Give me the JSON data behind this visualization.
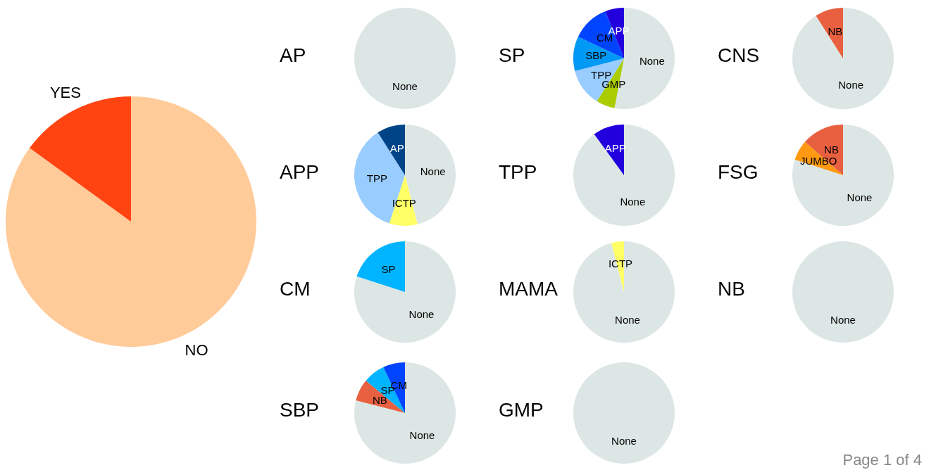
{
  "chart_data": [
    {
      "type": "pie",
      "categories": [
        "NO",
        "YES"
      ],
      "values": [
        85,
        15
      ],
      "colors": [
        "#ffcb99",
        "#ff4411"
      ],
      "annotations": [
        "Page 1 of 4"
      ]
    },
    {
      "type": "pie",
      "title": "AP",
      "categories": [
        "None"
      ],
      "values": [
        100
      ],
      "colors": [
        "#dce6e4"
      ]
    },
    {
      "type": "pie",
      "title": "SP",
      "categories": [
        "None",
        "GMP",
        "TPP",
        "SBP",
        "CM",
        "APP"
      ],
      "values": [
        53,
        6,
        12,
        11,
        12,
        6
      ],
      "colors": [
        "#dce6e4",
        "#aacc00",
        "#99ccff",
        "#0099f5",
        "#0044ff",
        "#2200dd"
      ]
    },
    {
      "type": "pie",
      "title": "CNS",
      "categories": [
        "None",
        "NB"
      ],
      "values": [
        91,
        9
      ],
      "colors": [
        "#dce6e4",
        "#e96040"
      ]
    },
    {
      "type": "pie",
      "title": "APP",
      "categories": [
        "None",
        "ICTP",
        "TPP",
        "AP"
      ],
      "values": [
        46,
        9,
        36,
        9
      ],
      "colors": [
        "#dce6e4",
        "#ffff66",
        "#99ccff",
        "#004488"
      ]
    },
    {
      "type": "pie",
      "title": "TPP",
      "categories": [
        "None",
        "APP"
      ],
      "values": [
        90,
        10
      ],
      "colors": [
        "#dce6e4",
        "#2200dd"
      ]
    },
    {
      "type": "pie",
      "title": "FSG",
      "categories": [
        "None",
        "JUMBO",
        "NB"
      ],
      "values": [
        80,
        6.5,
        13.5
      ],
      "colors": [
        "#dce6e4",
        "#ff9911",
        "#e96040"
      ]
    },
    {
      "type": "pie",
      "title": "CM",
      "categories": [
        "None",
        "SP"
      ],
      "values": [
        80,
        20
      ],
      "colors": [
        "#dce6e4",
        "#00b4ff"
      ]
    },
    {
      "type": "pie",
      "title": "MAMA",
      "categories": [
        "None",
        "ICTP"
      ],
      "values": [
        96,
        4
      ],
      "colors": [
        "#dce6e4",
        "#ffff66"
      ]
    },
    {
      "type": "pie",
      "title": "NB",
      "categories": [
        "None"
      ],
      "values": [
        100
      ],
      "colors": [
        "#dce6e4"
      ]
    },
    {
      "type": "pie",
      "title": "SBP",
      "categories": [
        "None",
        "NB",
        "SP",
        "CM"
      ],
      "values": [
        79,
        7,
        7,
        7
      ],
      "colors": [
        "#dce6e4",
        "#e96040",
        "#00b4ff",
        "#0044ff"
      ]
    },
    {
      "type": "pie",
      "title": "GMP",
      "categories": [
        "None"
      ],
      "values": [
        100
      ],
      "colors": [
        "#dce6e4"
      ]
    }
  ]
}
